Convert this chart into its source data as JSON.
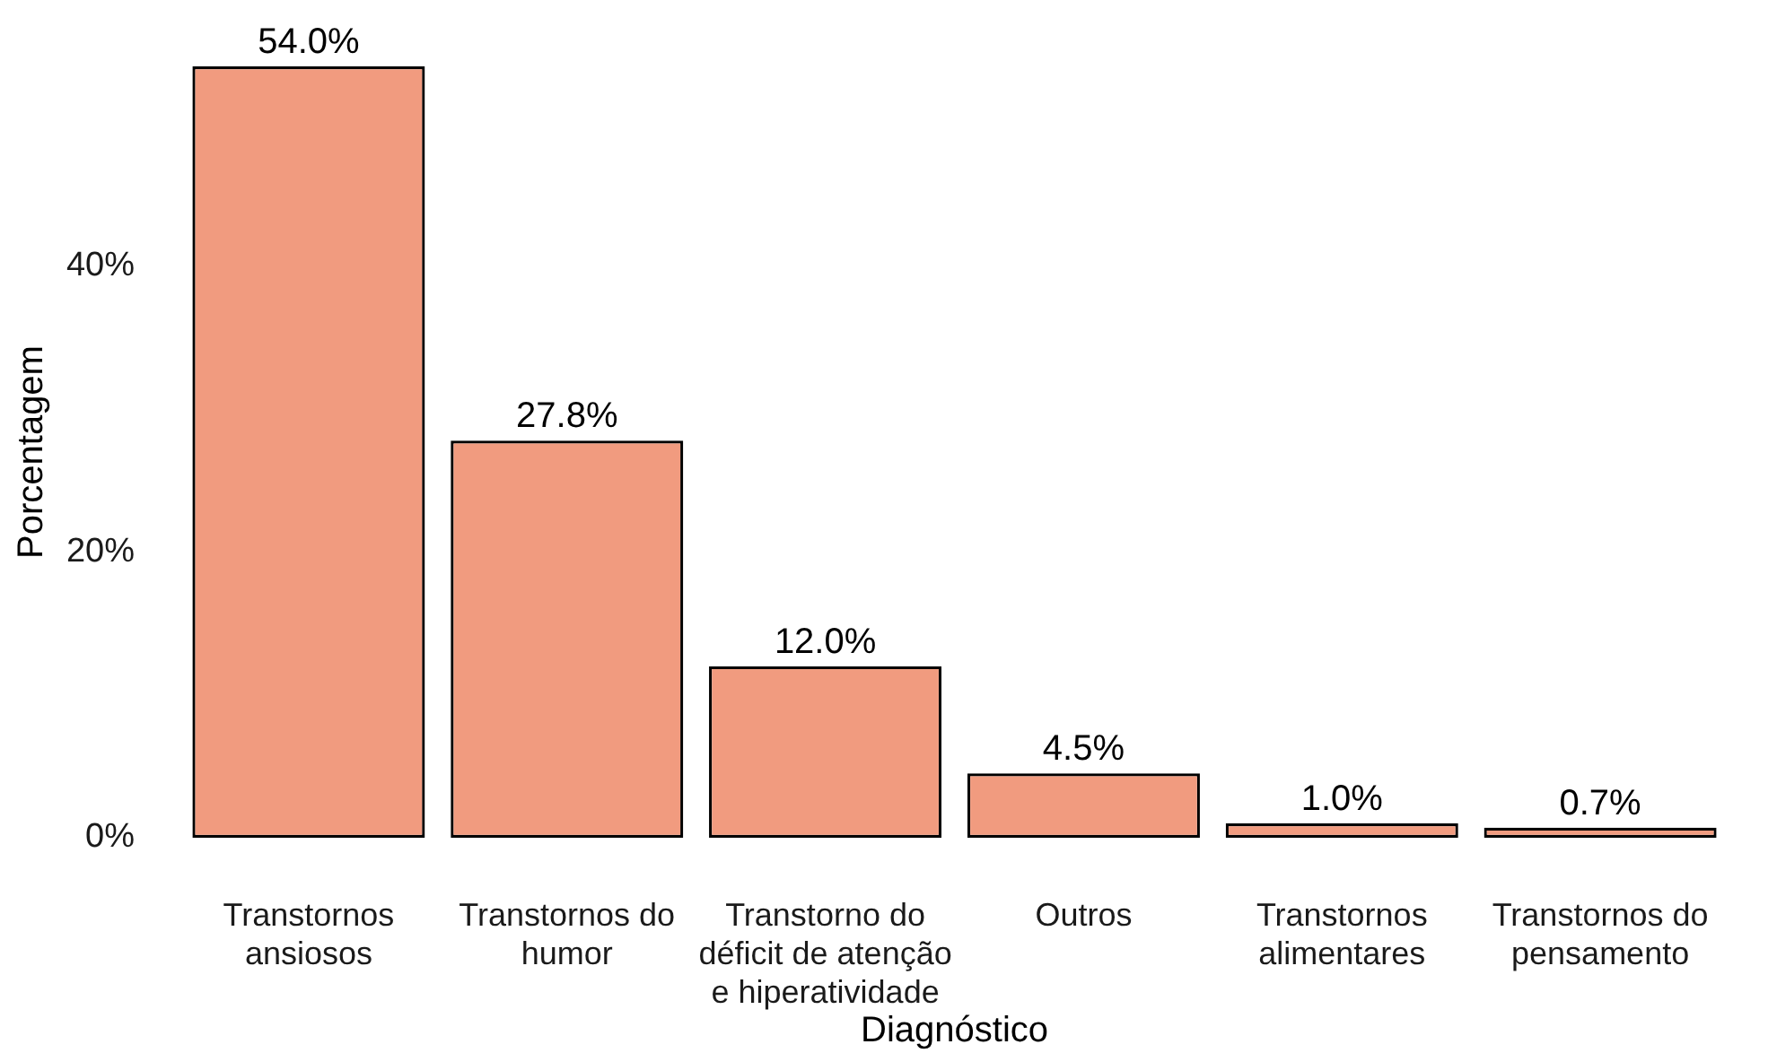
{
  "chart_data": {
    "type": "bar",
    "xlabel": "Diagnóstico",
    "ylabel": "Porcentagem",
    "categories": [
      "Transtornos ansiosos",
      "Transtornos do humor",
      "Transtorno do déficit de atenção e hiperatividade",
      "Outros",
      "Transtornos alimentares",
      "Transtornos do pensamento"
    ],
    "values": [
      54.0,
      27.8,
      12.0,
      4.5,
      1.0,
      0.7
    ],
    "value_labels": [
      "54.0%",
      "27.8%",
      "12.0%",
      "4.5%",
      "1.0%",
      "0.7%"
    ],
    "color": "#f19b7f",
    "ylim": [
      0,
      54
    ],
    "yticks": [
      {
        "value": 0,
        "label": "0%"
      },
      {
        "value": 20,
        "label": "20%"
      },
      {
        "value": 40,
        "label": "40%"
      }
    ],
    "grid": false,
    "legend": false
  }
}
